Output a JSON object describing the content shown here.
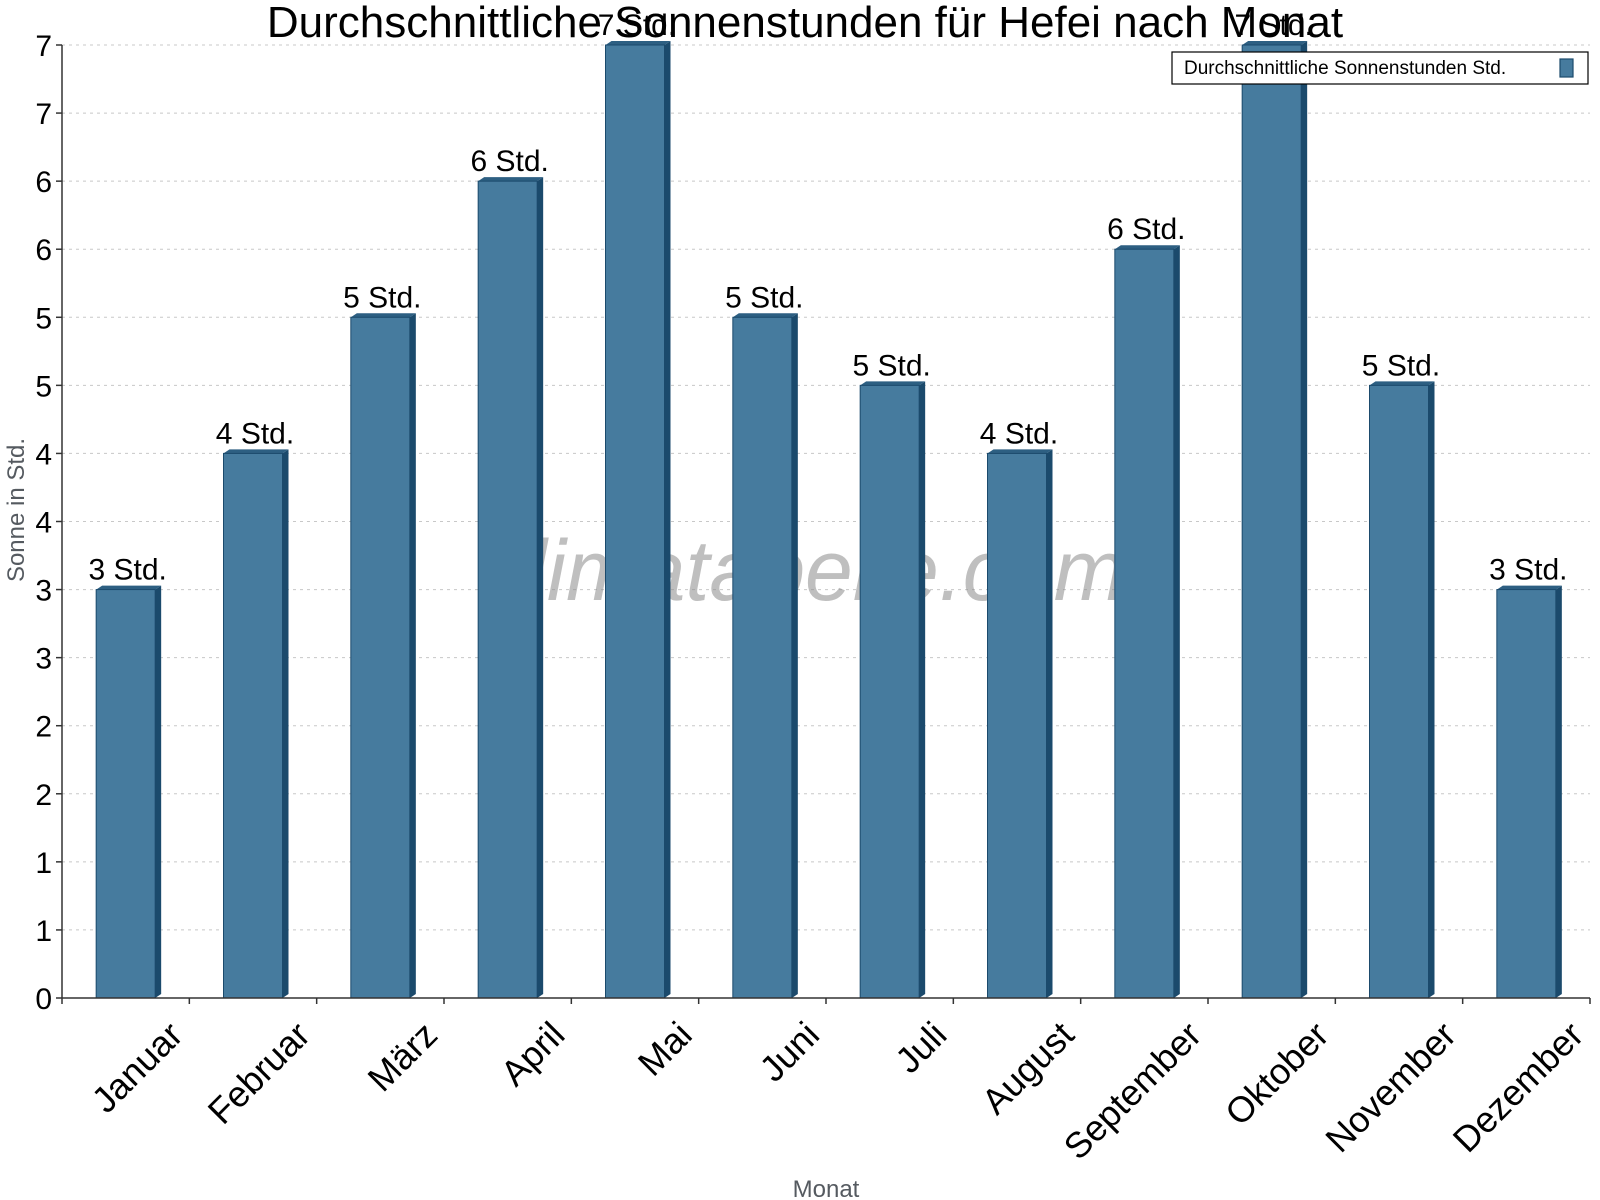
{
  "chart_data": {
    "type": "bar",
    "title": "Durchschnittliche Sonnenstunden für Hefei nach Monat",
    "xlabel": "Monat",
    "ylabel": "Sonne in Std.",
    "categories": [
      "Januar",
      "Februar",
      "März",
      "April",
      "Mai",
      "Juni",
      "Juli",
      "August",
      "September",
      "Oktober",
      "November",
      "Dezember"
    ],
    "series": [
      {
        "name": "Durchschnittliche Sonnenstunden Std.",
        "values": [
          3.0,
          4.0,
          5.0,
          6.0,
          7.0,
          5.0,
          4.5,
          4.0,
          5.5,
          7.0,
          4.5,
          3.0
        ],
        "data_labels": [
          "3 Std.",
          "4 Std.",
          "5 Std.",
          "6 Std.",
          "7 Std.",
          "5 Std.",
          "5 Std.",
          "4 Std.",
          "6 Std.",
          "7 Std.",
          "5 Std.",
          "3 Std."
        ]
      }
    ],
    "ylim": [
      0,
      7
    ],
    "yticks": [
      0,
      0.5,
      1,
      1.5,
      2,
      2.5,
      3,
      3.5,
      4,
      4.5,
      5,
      5.5,
      6,
      6.5,
      7
    ],
    "ytick_labels": [
      "0",
      "1",
      "1",
      "2",
      "2",
      "3",
      "3",
      "4",
      "4",
      "5",
      "5",
      "6",
      "6",
      "7",
      "7"
    ],
    "grid": true,
    "legend_position": "top-right",
    "colors": {
      "bar": "#467b9e",
      "bar_side": "#1b4a6c",
      "bar_top": "#2d5f82"
    }
  },
  "watermark": "klimatabelle.com"
}
